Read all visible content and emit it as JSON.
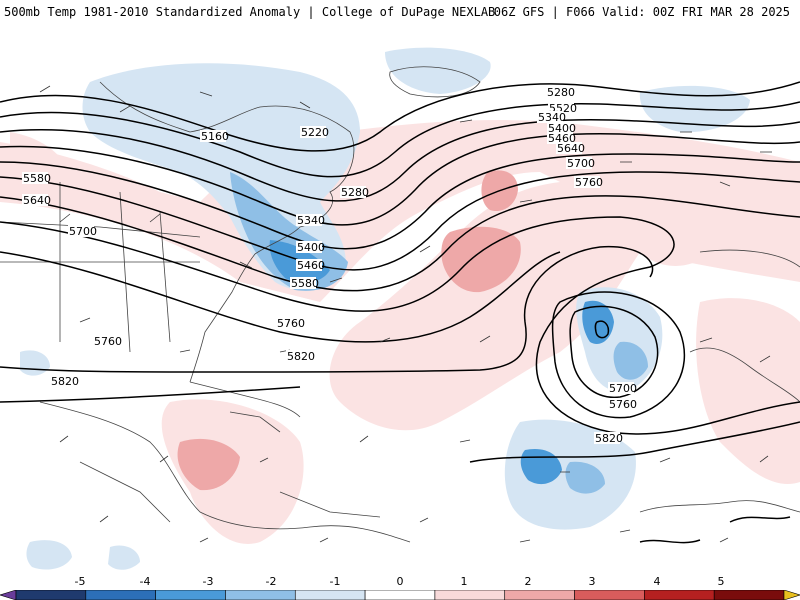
{
  "header": {
    "left_title": "500mb Temp 1981-2010 Standardized Anomaly | College of DuPage NEXLAB",
    "right_title": "06Z GFS | F066 Valid: 00Z FRI MAR 28 2025"
  },
  "contour_labels": [
    "5160",
    "5220",
    "5280",
    "5340",
    "5400",
    "5460",
    "5520",
    "5580",
    "5640",
    "5700",
    "5760",
    "5820"
  ],
  "colorbar": {
    "ticks": [
      "-5",
      "-4",
      "-3",
      "-2",
      "-1",
      "0",
      "1",
      "2",
      "3",
      "4",
      "5"
    ],
    "colors": [
      "#6a3d9a",
      "#1f3a6e",
      "#2c6fb8",
      "#4a9ad8",
      "#8fbfe6",
      "#d5e5f3",
      "#ffffff",
      "#f8dada",
      "#eea8a8",
      "#d95c5c",
      "#b52020",
      "#7a0c0c",
      "#e8c020"
    ]
  }
}
